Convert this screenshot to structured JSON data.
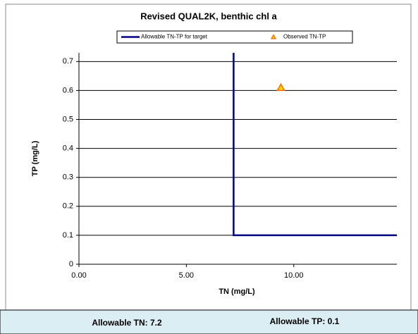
{
  "chart_data": {
    "type": "line",
    "title": "Revised QUAL2K, benthic chl a",
    "xlabel": "TN (mg/L)",
    "ylabel": "TP (mg/L)",
    "xlim": [
      0,
      14.8
    ],
    "ylim": [
      0,
      0.73
    ],
    "xticks": [
      {
        "value": 0,
        "label": "0.00"
      },
      {
        "value": 5,
        "label": "5.00"
      },
      {
        "value": 10,
        "label": "10.00"
      }
    ],
    "yticks": [
      0,
      0.1,
      0.2,
      0.3,
      0.4,
      0.5,
      0.6,
      0.7
    ],
    "grid": true,
    "series": [
      {
        "name": "Allowable TN-TP for target",
        "color": "#000080",
        "x": [
          7.2,
          7.2,
          14.8
        ],
        "values": [
          0.73,
          0.1,
          0.1
        ]
      },
      {
        "name": "Observed TN-TP",
        "color": "#ff6600",
        "type": "scatter",
        "x": [
          9.4
        ],
        "values": [
          0.61
        ]
      }
    ]
  },
  "footer": {
    "tn": "Allowable TN: 7.2",
    "tp": "Allowable TP: 0.1"
  }
}
